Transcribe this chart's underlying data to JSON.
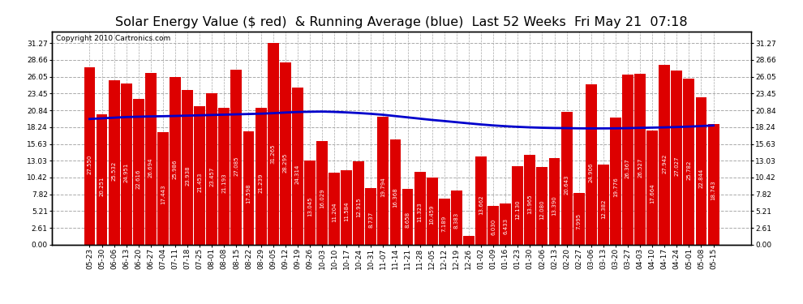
{
  "title": "Solar Energy Value ($ red)  & Running Average (blue)  Last 52 Weeks  Fri May 21  07:18",
  "copyright": "Copyright 2010 Cartronics.com",
  "bar_color": "#dd0000",
  "line_color": "#0000cc",
  "bg_color": "#ffffff",
  "grid_color": "#aaaaaa",
  "categories": [
    "05-23",
    "05-30",
    "06-06",
    "06-13",
    "06-20",
    "06-27",
    "07-04",
    "07-11",
    "07-18",
    "07-25",
    "08-01",
    "08-08",
    "08-15",
    "08-22",
    "08-29",
    "09-05",
    "09-12",
    "09-19",
    "09-26",
    "10-03",
    "10-10",
    "10-17",
    "10-24",
    "10-31",
    "11-07",
    "11-14",
    "11-21",
    "11-28",
    "12-05",
    "12-12",
    "12-19",
    "12-26",
    "01-02",
    "01-09",
    "01-16",
    "01-23",
    "01-30",
    "02-06",
    "02-13",
    "02-20",
    "02-27",
    "03-06",
    "03-13",
    "03-20",
    "03-27",
    "04-03",
    "04-10",
    "04-17",
    "04-24",
    "05-01",
    "05-08",
    "05-15"
  ],
  "values": [
    27.55,
    20.251,
    25.532,
    24.951,
    22.616,
    26.694,
    17.443,
    25.986,
    23.938,
    21.453,
    23.457,
    21.193,
    27.085,
    17.598,
    21.239,
    31.265,
    28.295,
    24.314,
    13.045,
    16.029,
    11.204,
    11.584,
    12.915,
    8.737,
    19.794,
    16.368,
    8.658,
    11.323,
    10.459,
    7.189,
    8.383,
    1.364,
    13.662,
    6.03,
    6.433,
    12.13,
    13.965,
    12.08,
    13.39,
    20.643,
    7.995,
    24.906,
    12.382,
    19.776,
    26.367,
    26.527,
    17.664,
    27.942,
    27.027,
    25.782,
    22.844,
    18.743
  ],
  "running_avg": [
    19.5,
    19.6,
    19.7,
    19.8,
    19.85,
    19.9,
    19.93,
    19.97,
    20.02,
    20.07,
    20.12,
    20.17,
    20.22,
    20.27,
    20.32,
    20.4,
    20.5,
    20.58,
    20.62,
    20.65,
    20.6,
    20.52,
    20.42,
    20.3,
    20.15,
    19.95,
    19.75,
    19.55,
    19.35,
    19.18,
    19.0,
    18.82,
    18.65,
    18.5,
    18.38,
    18.28,
    18.2,
    18.14,
    18.1,
    18.08,
    18.05,
    18.04,
    18.04,
    18.05,
    18.08,
    18.12,
    18.16,
    18.2,
    18.25,
    18.32,
    18.4,
    18.5
  ],
  "yticks": [
    0.0,
    2.61,
    5.21,
    7.82,
    10.42,
    13.03,
    15.63,
    18.24,
    20.84,
    23.45,
    26.05,
    28.66,
    31.27
  ],
  "ylim": [
    0.0,
    33.0
  ],
  "title_fontsize": 11.5,
  "copyright_fontsize": 6.5,
  "tick_fontsize": 6.5,
  "bar_label_fontsize": 5.0
}
